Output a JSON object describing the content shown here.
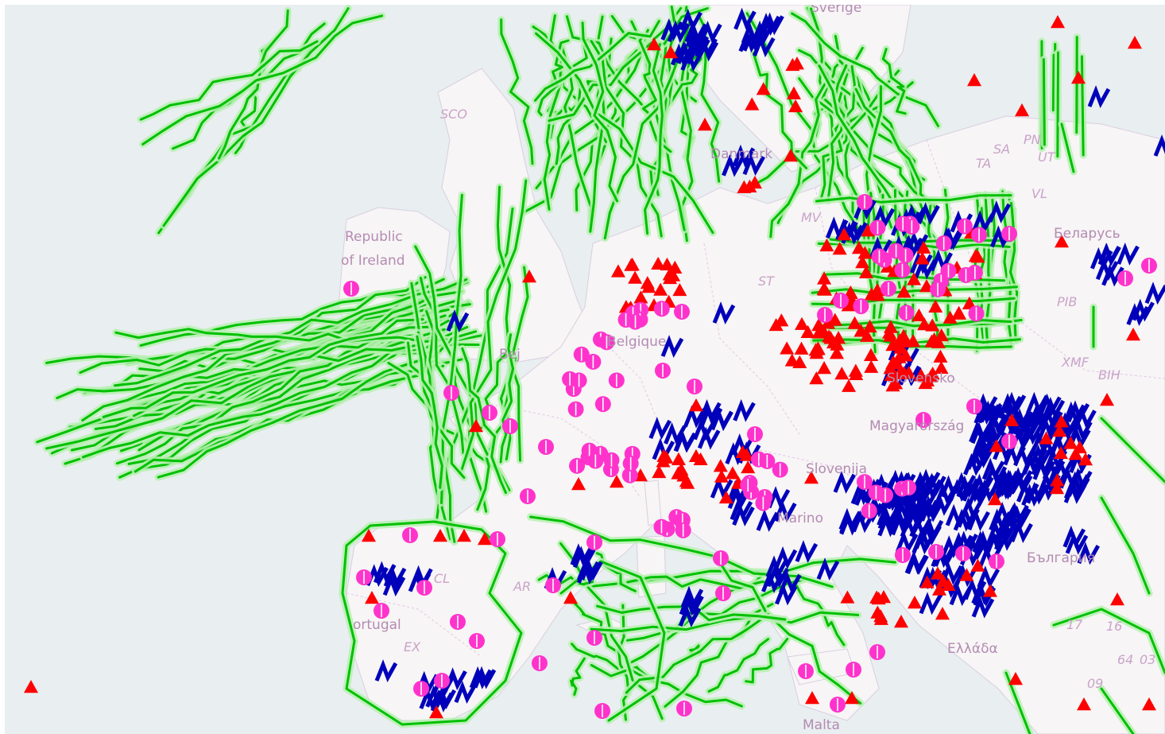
{
  "map": {
    "labels": [
      {
        "id": "label-sverige",
        "text": "Sverige"
      },
      {
        "id": "label-sco",
        "text": "SCO"
      },
      {
        "id": "label-republic",
        "text": "Republic"
      },
      {
        "id": "label-of-ireland",
        "text": "of Ireland"
      },
      {
        "id": "label-danmark",
        "text": "Danmark"
      },
      {
        "id": "label-mv",
        "text": "MV"
      },
      {
        "id": "label-st",
        "text": "ST"
      },
      {
        "id": "label-belgique",
        "text": "Belgique"
      },
      {
        "id": "label-beij",
        "text": "Bej"
      },
      {
        "id": "label-slovensko",
        "text": "Slovensko"
      },
      {
        "id": "label-magyarorszag",
        "text": "Magyarország"
      },
      {
        "id": "label-slovenija",
        "text": "Slovenija"
      },
      {
        "id": "label-san-marino",
        "text": "Marino"
      },
      {
        "id": "label-belarus",
        "text": "Беларусь"
      },
      {
        "id": "label-bulgaria",
        "text": "България"
      },
      {
        "id": "label-ellada",
        "text": "Ελλάδα"
      },
      {
        "id": "label-portugal",
        "text": "ortugal"
      },
      {
        "id": "label-cl",
        "text": "CL"
      },
      {
        "id": "label-ex",
        "text": "EX"
      },
      {
        "id": "label-ar",
        "text": "AR"
      },
      {
        "id": "label-pib",
        "text": "PIB"
      },
      {
        "id": "label-xmf",
        "text": "XMF"
      },
      {
        "id": "label-bih",
        "text": "BIH"
      },
      {
        "id": "label-sa",
        "text": "SA"
      },
      {
        "id": "label-ta",
        "text": "TA"
      },
      {
        "id": "label-pn",
        "text": "PN"
      },
      {
        "id": "label-ut",
        "text": "UT"
      },
      {
        "id": "label-vl",
        "text": "VL"
      },
      {
        "id": "label-malta",
        "text": "Malta"
      },
      {
        "id": "label-17",
        "text": "17"
      },
      {
        "id": "label-16",
        "text": "16"
      },
      {
        "id": "label-64",
        "text": "64"
      },
      {
        "id": "label-03",
        "text": "03"
      },
      {
        "id": "label-09",
        "text": "09"
      }
    ],
    "legend_colors": {
      "routes": "#00c000",
      "zigzag": "#0000bb",
      "triangle": "#ff0000",
      "circle": "#ff33cc"
    }
  }
}
